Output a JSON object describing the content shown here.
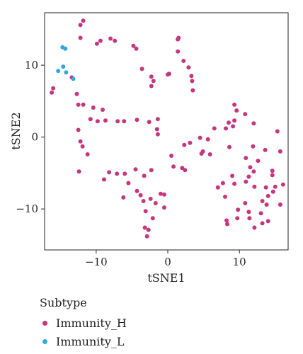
{
  "chart_data": {
    "type": "scatter",
    "xlabel": "tSNE1",
    "ylabel": "tSNE2",
    "xlim": [
      -17.2,
      16.8
    ],
    "ylim": [
      -15.7,
      17.3
    ],
    "xticks": [
      -10,
      0,
      10
    ],
    "yticks": [
      -10,
      0,
      10
    ],
    "grid": false,
    "legend": {
      "title": "Subtype",
      "position": "bottom-left"
    },
    "series": [
      {
        "name": "Immunity_H",
        "color": "#C6357F",
        "points": [
          [
            -11.8,
            16.2
          ],
          [
            -12.2,
            15.6
          ],
          [
            -12.2,
            13.8
          ],
          [
            -9.4,
            13.4
          ],
          [
            -9.9,
            13.0
          ],
          [
            -8.0,
            13.7
          ],
          [
            -7.4,
            13.4
          ],
          [
            -4.8,
            12.7
          ],
          [
            -4.4,
            12.3
          ],
          [
            1.5,
            13.8
          ],
          [
            1.4,
            13.6
          ],
          [
            1.4,
            11.9
          ],
          [
            -16.0,
            6.8
          ],
          [
            -16.2,
            6.2
          ],
          [
            -13.4,
            8.3
          ],
          [
            -3.6,
            9.5
          ],
          [
            -2.3,
            8.4
          ],
          [
            -2.0,
            7.8
          ],
          [
            -2.3,
            7.1
          ],
          [
            0.2,
            8.8
          ],
          [
            0.0,
            8.7
          ],
          [
            2.2,
            10.6
          ],
          [
            2.9,
            9.7
          ],
          [
            3.3,
            8.5
          ],
          [
            3.4,
            7.8
          ],
          [
            3.5,
            6.5
          ],
          [
            -12.7,
            6.0
          ],
          [
            -12.5,
            4.5
          ],
          [
            -11.8,
            4.5
          ],
          [
            -10.4,
            4.1
          ],
          [
            -9.1,
            3.8
          ],
          [
            -10.8,
            2.5
          ],
          [
            -9.8,
            2.2
          ],
          [
            -8.7,
            2.3
          ],
          [
            -7.0,
            2.2
          ],
          [
            -6.1,
            2.2
          ],
          [
            -4.3,
            2.4
          ],
          [
            -2.6,
            2.1
          ],
          [
            -1.4,
            2.5
          ],
          [
            -1.5,
            1.1
          ],
          [
            -1.4,
            0.4
          ],
          [
            -12.5,
            1.0
          ],
          [
            -12.2,
            -0.6
          ],
          [
            -11.9,
            -1.3
          ],
          [
            -11.2,
            -2.4
          ],
          [
            -12.4,
            -4.8
          ],
          [
            -8.2,
            -4.9
          ],
          [
            -7.1,
            -5.1
          ],
          [
            -6.0,
            -5.1
          ],
          [
            -4.5,
            -4.5
          ],
          [
            -3.3,
            -5.4
          ],
          [
            -2.3,
            -4.6
          ],
          [
            -8.9,
            -5.9
          ],
          [
            -6.2,
            -8.4
          ],
          [
            -5.5,
            -6.4
          ],
          [
            -4.3,
            -7.5
          ],
          [
            -3.8,
            -8.1
          ],
          [
            -3.4,
            -8.9
          ],
          [
            -3.1,
            -10.3
          ],
          [
            -3.2,
            -12.6
          ],
          [
            -2.9,
            -13.8
          ],
          [
            -2.7,
            -12.9
          ],
          [
            -2.4,
            -8.6
          ],
          [
            -2.1,
            -11.3
          ],
          [
            -1.7,
            -9.2
          ],
          [
            -1.0,
            -7.9
          ],
          [
            -0.5,
            -9.8
          ],
          [
            -0.5,
            -8.0
          ],
          [
            0.5,
            -2.6
          ],
          [
            0.8,
            -4.1
          ],
          [
            2.0,
            -4.3
          ],
          [
            2.4,
            -4.6
          ],
          [
            2.3,
            -1.1
          ],
          [
            3.1,
            -0.8
          ],
          [
            4.5,
            -0.1
          ],
          [
            4.9,
            -2.0
          ],
          [
            5.6,
            -0.3
          ],
          [
            5.9,
            -2.4
          ],
          [
            4.7,
            -2.3
          ],
          [
            6.5,
            1.2
          ],
          [
            8.1,
            1.2
          ],
          [
            9.1,
            1.5
          ],
          [
            9.3,
            2.3
          ],
          [
            9.3,
            4.5
          ],
          [
            9.6,
            3.7
          ],
          [
            10.8,
            3.2
          ],
          [
            12.0,
            1.9
          ],
          [
            8.5,
            2.0
          ],
          [
            8.6,
            -1.4
          ],
          [
            11.9,
            -1.3
          ],
          [
            13.6,
            -1.8
          ],
          [
            10.9,
            -2.9
          ],
          [
            11.5,
            -4.2
          ],
          [
            12.6,
            -3.3
          ],
          [
            12.0,
            -4.8
          ],
          [
            11.3,
            -5.5
          ],
          [
            12.1,
            -6.9
          ],
          [
            14.6,
            -4.7
          ],
          [
            14.6,
            -5.3
          ],
          [
            15.7,
            -2.0
          ],
          [
            16.1,
            -6.6
          ],
          [
            15.3,
            0.8
          ],
          [
            9.0,
            -5.4
          ],
          [
            9.3,
            -6.5
          ],
          [
            10.9,
            -6.2
          ],
          [
            14.7,
            -7.6
          ],
          [
            14.0,
            -8.2
          ],
          [
            13.7,
            -7.0
          ],
          [
            15.0,
            -6.9
          ],
          [
            13.2,
            -8.9
          ],
          [
            13.8,
            -9.4
          ],
          [
            13.0,
            -10.6
          ],
          [
            14.0,
            -11.7
          ],
          [
            13.2,
            -12.0
          ],
          [
            15.7,
            -9.4
          ],
          [
            9.8,
            -10.1
          ],
          [
            9.7,
            -11.3
          ],
          [
            8.2,
            -11.6
          ],
          [
            7.0,
            -7.0
          ],
          [
            7.7,
            -6.4
          ],
          [
            8.0,
            -8.3
          ],
          [
            10.8,
            -9.2
          ],
          [
            11.3,
            -10.4
          ],
          [
            11.4,
            -11.3
          ],
          [
            12.1,
            -12.6
          ],
          [
            8.3,
            -12.1
          ]
        ]
      },
      {
        "name": "Immunity_L",
        "color": "#2FA8DD",
        "points": [
          [
            -14.7,
            12.5
          ],
          [
            -14.3,
            12.3
          ],
          [
            -15.3,
            9.2
          ],
          [
            -14.6,
            9.8
          ],
          [
            -14.2,
            9.0
          ],
          [
            -13.2,
            8.1
          ]
        ]
      }
    ]
  }
}
